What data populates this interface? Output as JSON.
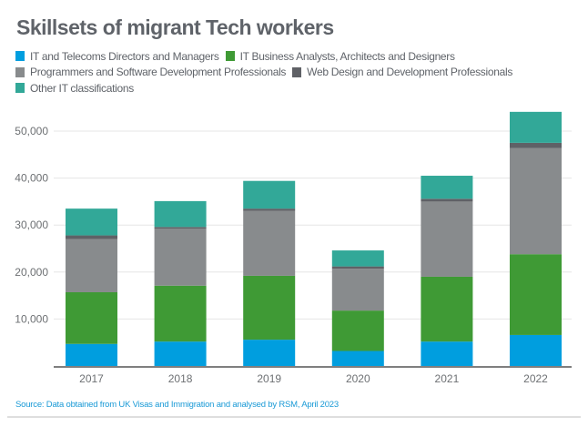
{
  "chart_data": {
    "type": "bar",
    "stacked": true,
    "title": "Skillsets of migrant Tech workers",
    "xlabel": "",
    "ylabel": "",
    "categories": [
      "2017",
      "2018",
      "2019",
      "2020",
      "2021",
      "2022"
    ],
    "series": [
      {
        "name": "IT and Telecoms Directors and Managers",
        "color": "#009edf",
        "values": [
          4700,
          5200,
          5600,
          3200,
          5200,
          6600
        ]
      },
      {
        "name": "IT Business Analysts, Architects and Designers",
        "color": "#3f9a35",
        "values": [
          11000,
          11900,
          13600,
          8600,
          13800,
          17200
        ]
      },
      {
        "name": "Programmers and Software Development Professionals",
        "color": "#888b8d",
        "values": [
          11300,
          12100,
          13800,
          8900,
          16000,
          22600
        ]
      },
      {
        "name": "Web Design and Development Professionals",
        "color": "#5f6166",
        "values": [
          800,
          400,
          500,
          500,
          600,
          1100
        ]
      },
      {
        "name": "Other IT classifications",
        "color": "#32a898",
        "values": [
          5700,
          5500,
          5900,
          3400,
          4900,
          6600
        ]
      }
    ],
    "ylim": [
      0,
      57000
    ],
    "yticks": [
      10000,
      20000,
      30000,
      40000,
      50000
    ],
    "ytick_labels": [
      "10,000",
      "20,000",
      "30,000",
      "40,000",
      "50,000"
    ],
    "grid": true,
    "legend_position": "top-left",
    "source": "Source: Data obtained from UK Visas and Immigration and analysed by RSM, April 2023"
  },
  "legend_rows": [
    [
      0,
      1
    ],
    [
      2,
      3
    ],
    [
      4
    ]
  ]
}
